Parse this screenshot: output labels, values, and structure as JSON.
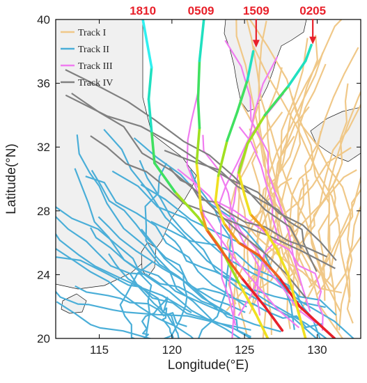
{
  "chart_data": {
    "type": "map",
    "axes": {
      "x_label": "Longitude(°E)",
      "y_label": "Latitude(°N)",
      "x_range": [
        112,
        133
      ],
      "y_range": [
        20,
        40
      ],
      "x_ticks": [
        115,
        120,
        125,
        130
      ],
      "y_ticks": [
        20,
        24,
        28,
        32,
        36,
        40
      ],
      "x_tick_labels": [
        "115",
        "120",
        "125",
        "130"
      ],
      "y_tick_labels": [
        "20",
        "24",
        "28",
        "32",
        "36",
        "40"
      ]
    },
    "legend": {
      "placement": "top-left",
      "entries": [
        {
          "label": "Track I",
          "color": "#f0c888"
        },
        {
          "label": "Track II",
          "color": "#4aaed8"
        },
        {
          "label": "Track III",
          "color": "#f07cf0"
        },
        {
          "label": "Track IV",
          "color": "#808080"
        }
      ]
    },
    "colors": {
      "land": "#f0f0f0",
      "coastline": "#111111",
      "callout": "#e8202a",
      "frame": "#000000"
    },
    "callouts": [
      {
        "label": "1810",
        "lon": 118.0,
        "lat": 40.0,
        "arrow": false
      },
      {
        "label": "0509",
        "lon": 122.0,
        "lat": 40.0,
        "arrow": false
      },
      {
        "label": "1509",
        "lon": 125.8,
        "lat": 38.2,
        "arrow": true
      },
      {
        "label": "0205",
        "lon": 129.7,
        "lat": 38.4,
        "arrow": true
      }
    ],
    "highlighted_tracks": [
      {
        "label": "1810",
        "points": [
          [
            126.6,
            20.0
          ],
          [
            125.8,
            21.5
          ],
          [
            124.6,
            23.5
          ],
          [
            123.4,
            25.6
          ],
          [
            121.8,
            27.6
          ],
          [
            120.2,
            29.2
          ],
          [
            118.8,
            31.0
          ],
          [
            118.6,
            33.0
          ],
          [
            118.4,
            35.0
          ],
          [
            118.6,
            37.0
          ],
          [
            118.2,
            39.0
          ],
          [
            118.0,
            40.0
          ]
        ]
      },
      {
        "label": "0509",
        "points": [
          [
            127.6,
            20.5
          ],
          [
            126.4,
            22.0
          ],
          [
            124.8,
            23.8
          ],
          [
            123.5,
            25.4
          ],
          [
            122.4,
            26.8
          ],
          [
            122.0,
            28.0
          ],
          [
            121.9,
            29.2
          ],
          [
            121.7,
            31.0
          ],
          [
            121.9,
            33.2
          ],
          [
            121.8,
            35.0
          ],
          [
            121.9,
            37.4
          ],
          [
            122.2,
            40.0
          ]
        ]
      },
      {
        "label": "1509",
        "points": [
          [
            131.2,
            20.0
          ],
          [
            128.8,
            22.0
          ],
          [
            127.4,
            23.8
          ],
          [
            126.0,
            25.2
          ],
          [
            124.6,
            26.0
          ],
          [
            123.6,
            27.2
          ],
          [
            123.0,
            28.6
          ],
          [
            123.2,
            30.2
          ],
          [
            123.8,
            32.4
          ],
          [
            124.5,
            34.2
          ],
          [
            125.2,
            36.2
          ],
          [
            125.6,
            38.0
          ]
        ]
      },
      {
        "label": "0205",
        "points": [
          [
            129.2,
            20.0
          ],
          [
            128.6,
            22.0
          ],
          [
            128.0,
            24.0
          ],
          [
            127.2,
            25.6
          ],
          [
            126.4,
            26.8
          ],
          [
            125.4,
            27.8
          ],
          [
            125.0,
            29.0
          ],
          [
            124.6,
            30.4
          ],
          [
            125.2,
            32.2
          ],
          [
            126.4,
            34.0
          ],
          [
            128.0,
            35.8
          ],
          [
            129.2,
            37.4
          ],
          [
            129.6,
            38.4
          ]
        ]
      }
    ]
  }
}
